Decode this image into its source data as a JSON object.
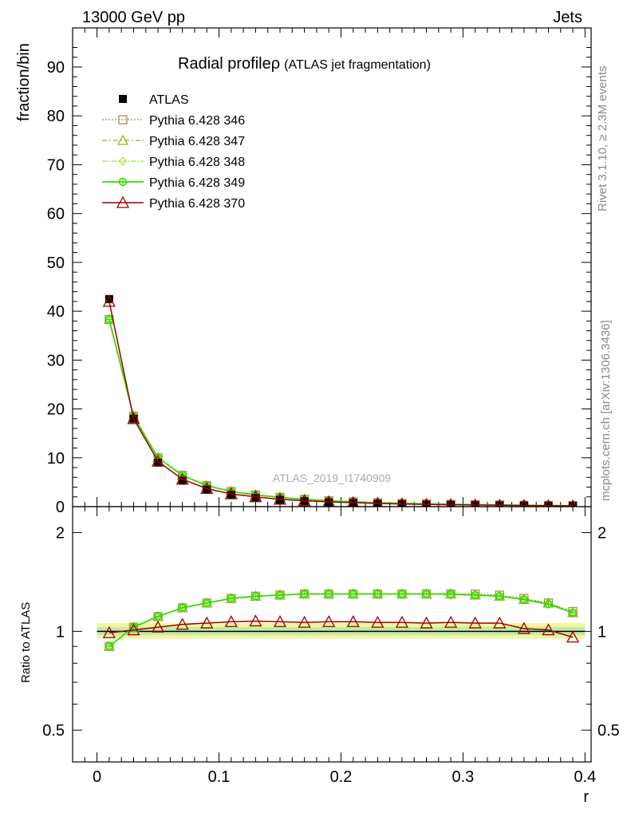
{
  "header": {
    "left": "13000 GeV pp",
    "right": "Jets"
  },
  "side_labels": {
    "rivet": "Rivet 3.1.10, ≥ 2.3M events",
    "mcplots": "mcplots.cern.ch [arXiv:1306.3436]"
  },
  "colors": {
    "atlas": "#000000",
    "p346": "#b5895a",
    "p347": "#99b31a",
    "p348": "#99e633",
    "p349": "#33dd00",
    "p370": "#990000",
    "band_outer": "#f5f59a",
    "band_inner": "#b3e6b3"
  },
  "chart_data": [
    {
      "type": "line",
      "title": "Radial profile ρ (ATLAS jet fragmentation)",
      "title_main": "Radial profile",
      "title_rho": "ρ",
      "title_sub": "(ATLAS jet fragmentation)",
      "ylabel": "fraction/bin",
      "watermark": "ATLAS_2019_I1740909",
      "xlim": [
        -0.02,
        0.405
      ],
      "ylim": [
        0,
        98
      ],
      "y_ticks": [
        "0",
        "10",
        "20",
        "30",
        "40",
        "50",
        "60",
        "70",
        "80",
        "90"
      ],
      "x": [
        0.01,
        0.03,
        0.05,
        0.07,
        0.09,
        0.11,
        0.13,
        0.15,
        0.17,
        0.19,
        0.21,
        0.23,
        0.25,
        0.27,
        0.29,
        0.31,
        0.33,
        0.35,
        0.37,
        0.39
      ],
      "legend_position": "top-left",
      "series": [
        {
          "name": "ATLAS",
          "key": "atlas",
          "values": [
            42.5,
            18.0,
            9.0,
            5.3,
            3.5,
            2.4,
            1.8,
            1.4,
            1.1,
            0.9,
            0.75,
            0.6,
            0.5,
            0.42,
            0.36,
            0.3,
            0.26,
            0.22,
            0.19,
            0.17
          ]
        },
        {
          "name": "Pythia 6.428 346",
          "key": "p346",
          "values": [
            38.3,
            18.5,
            10.0,
            6.4,
            4.3,
            3.1,
            2.4,
            1.9,
            1.5,
            1.2,
            1.0,
            0.82,
            0.68,
            0.57,
            0.49,
            0.41,
            0.35,
            0.29,
            0.24,
            0.2
          ]
        },
        {
          "name": "Pythia 6.428 347",
          "key": "p347",
          "values": [
            38.3,
            18.5,
            10.0,
            6.4,
            4.3,
            3.1,
            2.4,
            1.9,
            1.5,
            1.2,
            1.0,
            0.82,
            0.68,
            0.57,
            0.49,
            0.41,
            0.35,
            0.29,
            0.24,
            0.2
          ]
        },
        {
          "name": "Pythia 6.428 348",
          "key": "p348",
          "values": [
            38.3,
            18.5,
            10.0,
            6.4,
            4.3,
            3.1,
            2.4,
            1.9,
            1.5,
            1.2,
            1.0,
            0.82,
            0.68,
            0.57,
            0.49,
            0.41,
            0.35,
            0.29,
            0.24,
            0.2
          ]
        },
        {
          "name": "Pythia 6.428 349",
          "key": "p349",
          "values": [
            38.3,
            18.5,
            10.0,
            6.4,
            4.3,
            3.1,
            2.4,
            1.9,
            1.5,
            1.2,
            1.0,
            0.82,
            0.68,
            0.57,
            0.49,
            0.41,
            0.35,
            0.29,
            0.24,
            0.2
          ]
        },
        {
          "name": "Pythia 6.428 370",
          "key": "p370",
          "values": [
            42.0,
            18.0,
            9.3,
            5.6,
            3.7,
            2.6,
            2.0,
            1.5,
            1.2,
            0.97,
            0.81,
            0.65,
            0.54,
            0.45,
            0.39,
            0.32,
            0.28,
            0.23,
            0.19,
            0.16
          ]
        }
      ]
    },
    {
      "type": "line",
      "ylabel": "Ratio to ATLAS",
      "xlabel": "r",
      "scale": "log",
      "xlim": [
        -0.02,
        0.405
      ],
      "ylim": [
        0.4,
        2.4
      ],
      "y_ticks_left": [
        "2",
        "1",
        "0.5"
      ],
      "y_ticks_right": [
        "2",
        "1",
        "0.5"
      ],
      "x_ticks": [
        "0",
        "0.1",
        "0.2",
        "0.3",
        "0.4"
      ],
      "x": [
        0.01,
        0.03,
        0.05,
        0.07,
        0.09,
        0.11,
        0.13,
        0.15,
        0.17,
        0.19,
        0.21,
        0.23,
        0.25,
        0.27,
        0.29,
        0.31,
        0.33,
        0.35,
        0.37,
        0.39
      ],
      "band_outer": [
        0.95,
        1.06
      ],
      "band_inner": [
        0.975,
        1.03
      ],
      "series": [
        {
          "name": "Pythia 6.428 346",
          "key": "p346",
          "values": [
            0.9,
            1.03,
            1.11,
            1.18,
            1.22,
            1.26,
            1.28,
            1.29,
            1.3,
            1.3,
            1.3,
            1.3,
            1.3,
            1.3,
            1.3,
            1.3,
            1.29,
            1.26,
            1.22,
            1.15
          ]
        },
        {
          "name": "Pythia 6.428 347",
          "key": "p347",
          "values": [
            0.9,
            1.03,
            1.11,
            1.18,
            1.22,
            1.26,
            1.28,
            1.29,
            1.3,
            1.3,
            1.3,
            1.3,
            1.3,
            1.3,
            1.3,
            1.29,
            1.28,
            1.25,
            1.22,
            1.14
          ]
        },
        {
          "name": "Pythia 6.428 348",
          "key": "p348",
          "values": [
            0.9,
            1.03,
            1.11,
            1.18,
            1.22,
            1.26,
            1.28,
            1.29,
            1.3,
            1.3,
            1.3,
            1.3,
            1.3,
            1.3,
            1.29,
            1.29,
            1.28,
            1.25,
            1.21,
            1.14
          ]
        },
        {
          "name": "Pythia 6.428 349",
          "key": "p349",
          "values": [
            0.9,
            1.03,
            1.11,
            1.18,
            1.22,
            1.26,
            1.28,
            1.29,
            1.3,
            1.3,
            1.3,
            1.3,
            1.3,
            1.3,
            1.3,
            1.29,
            1.28,
            1.25,
            1.21,
            1.14
          ]
        },
        {
          "name": "Pythia 6.428 370",
          "key": "p370",
          "values": [
            0.99,
            1.01,
            1.03,
            1.05,
            1.06,
            1.07,
            1.075,
            1.07,
            1.065,
            1.07,
            1.07,
            1.065,
            1.065,
            1.06,
            1.065,
            1.06,
            1.06,
            1.02,
            1.01,
            0.96
          ]
        }
      ]
    }
  ]
}
